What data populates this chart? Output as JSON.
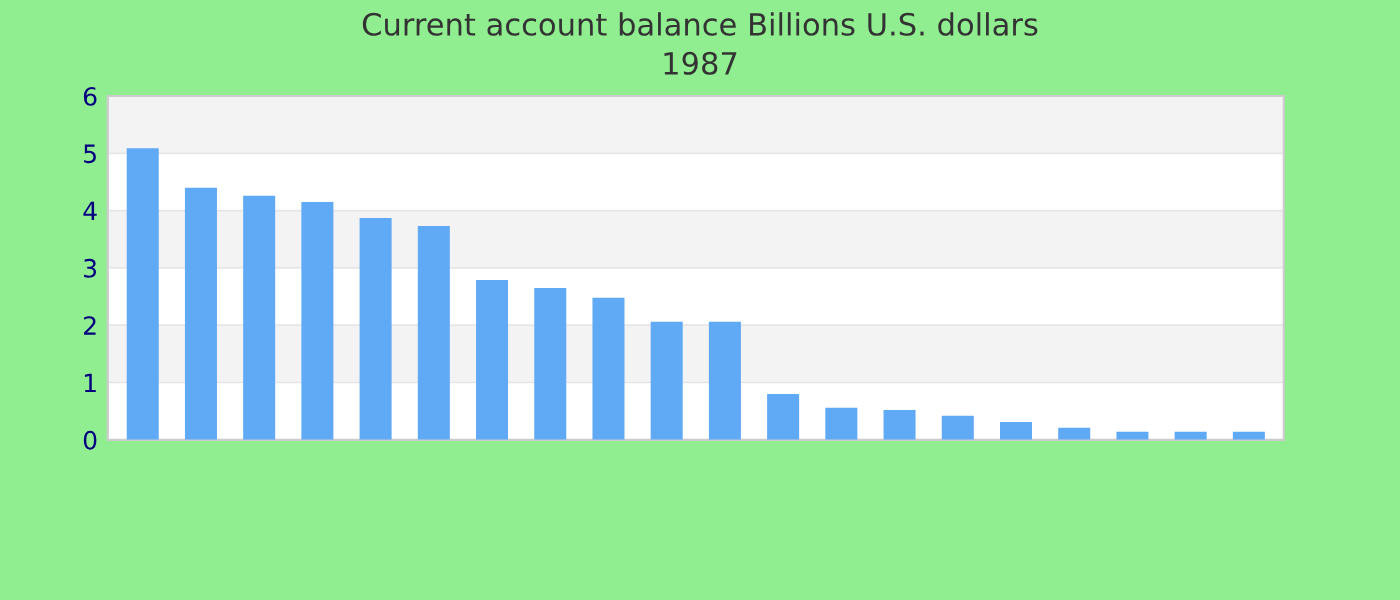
{
  "chart_data": {
    "type": "bar",
    "title": "Current account balance Billions U.S. dollars",
    "subtitle": "1987",
    "categories": [
      null,
      null,
      null,
      null,
      null,
      null,
      null,
      null,
      null,
      null,
      null,
      null,
      null,
      null,
      null,
      null,
      null,
      null,
      null,
      null
    ],
    "values": [
      5.09,
      4.4,
      4.26,
      4.15,
      3.87,
      3.73,
      2.79,
      2.65,
      2.48,
      2.06,
      2.06,
      0.8,
      0.56,
      0.52,
      0.42,
      0.31,
      0.21,
      0.14,
      0.14,
      0.14
    ],
    "color": "#60a9f5",
    "ylim": [
      0,
      6
    ],
    "yticks": [
      0,
      1,
      2,
      3,
      4,
      5,
      6
    ],
    "grid": "y"
  }
}
